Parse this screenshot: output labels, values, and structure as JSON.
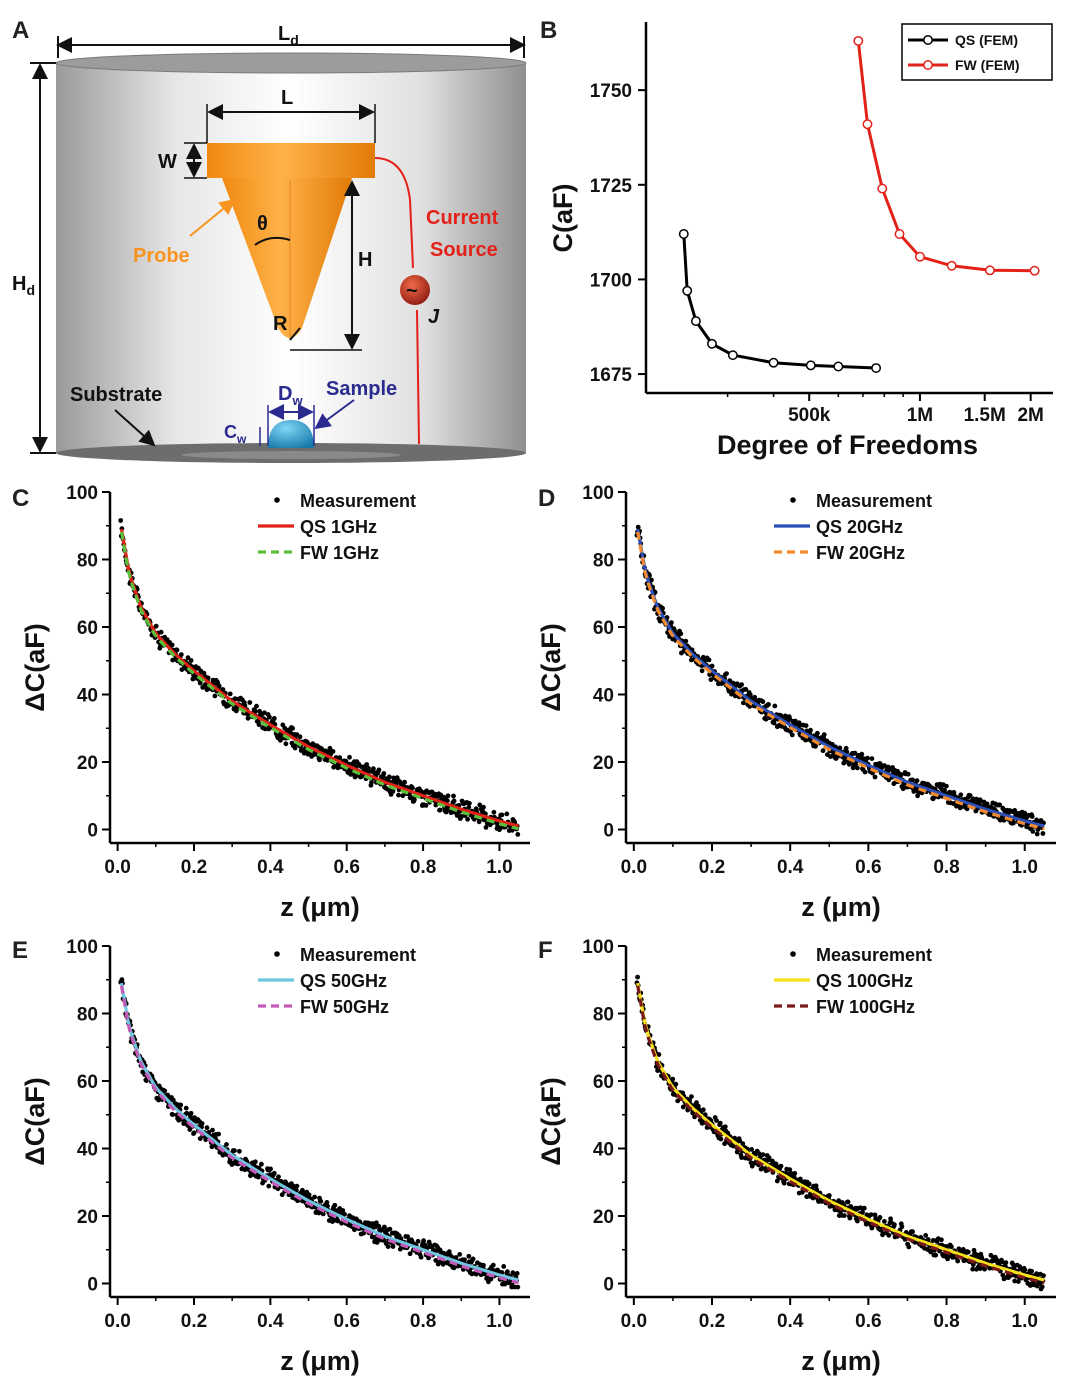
{
  "panel_labels": [
    "A",
    "B",
    "C",
    "D",
    "E",
    "F"
  ],
  "diagram": {
    "labels": {
      "Ld": "L",
      "Ld_sub": "d",
      "Hd": "H",
      "Hd_sub": "d",
      "L": "L",
      "W": "W",
      "theta": "θ",
      "H": "H",
      "R": "R",
      "probe": "Probe",
      "current_source_1": "Current",
      "current_source_2": "Source",
      "J": "J",
      "substrate": "Substrate",
      "sample": "Sample",
      "Dw": "D",
      "Dw_sub": "w",
      "Cw": "C",
      "Cw_sub": "w"
    },
    "colors": {
      "probe": "#f7931e",
      "current": "#e32119",
      "sample": "#1fa3d8",
      "dim": "#2b2b8f"
    }
  },
  "chart_data": [
    {
      "id": "B",
      "type": "line",
      "xlabel": "Degree of Freedoms",
      "ylabel": "C(aF)",
      "x_scale": "log",
      "xlim": [
        180000,
        2300000
      ],
      "ylim": [
        1670,
        1768
      ],
      "x_ticks": [
        {
          "value": 500000,
          "label": "500k"
        },
        {
          "value": 1000000,
          "label": "1M"
        },
        {
          "value": 1500000,
          "label": "1.5M"
        },
        {
          "value": 2000000,
          "label": "2M"
        }
      ],
      "y_ticks": [
        1675,
        1700,
        1725,
        1750
      ],
      "legend": "top-right",
      "series": [
        {
          "name": "QS (FEM)",
          "color": "#000000",
          "x": [
            228000,
            233000,
            246000,
            272000,
            310000,
            400000,
            505000,
            600000,
            760000
          ],
          "y": [
            1712,
            1697,
            1689,
            1683,
            1680,
            1678,
            1677.3,
            1677,
            1676.6
          ]
        },
        {
          "name": "FW (FEM)",
          "color": "#e32119",
          "x": [
            680000,
            720000,
            790000,
            880000,
            1000000,
            1220000,
            1550000,
            2050000
          ],
          "y": [
            1763,
            1741,
            1724,
            1712,
            1706,
            1703.6,
            1702.4,
            1702.3
          ]
        }
      ]
    },
    {
      "id": "C",
      "type": "scatter",
      "xlabel": "z (μm)",
      "ylabel": "ΔC(aF)",
      "xlim": [
        -0.02,
        1.08
      ],
      "ylim": [
        -4,
        100
      ],
      "x_ticks": [
        0.0,
        0.2,
        0.4,
        0.6,
        0.8,
        1.0
      ],
      "y_ticks": [
        0,
        20,
        40,
        60,
        80,
        100
      ],
      "legend": "top-right",
      "series": [
        {
          "name": "Measurement",
          "style": "dots",
          "color": "#000000"
        },
        {
          "name": "QS 1GHz",
          "style": "solid",
          "color": "#e32119"
        },
        {
          "name": "FW 1GHz",
          "style": "dash",
          "color": "#5cbf3c"
        }
      ],
      "curve": {
        "z": [
          0.01,
          0.03,
          0.06,
          0.1,
          0.15,
          0.2,
          0.3,
          0.4,
          0.5,
          0.6,
          0.7,
          0.8,
          0.9,
          1.0,
          1.05
        ],
        "dc": [
          89,
          76,
          66,
          58,
          52,
          47,
          38,
          31,
          24.5,
          19,
          14,
          10,
          6,
          2.5,
          1
        ]
      }
    },
    {
      "id": "D",
      "type": "scatter",
      "xlabel": "z (μm)",
      "ylabel": "ΔC(aF)",
      "xlim": [
        -0.02,
        1.08
      ],
      "ylim": [
        -4,
        100
      ],
      "x_ticks": [
        0.0,
        0.2,
        0.4,
        0.6,
        0.8,
        1.0
      ],
      "y_ticks": [
        0,
        20,
        40,
        60,
        80,
        100
      ],
      "legend": "top-right",
      "series": [
        {
          "name": "Measurement",
          "style": "dots",
          "color": "#000000"
        },
        {
          "name": "QS 20GHz",
          "style": "solid",
          "color": "#2a4fb8"
        },
        {
          "name": "FW 20GHz",
          "style": "dash",
          "color": "#f28a2e"
        }
      ],
      "curve": {
        "z": [
          0.01,
          0.03,
          0.06,
          0.1,
          0.15,
          0.2,
          0.3,
          0.4,
          0.5,
          0.6,
          0.7,
          0.8,
          0.9,
          1.0,
          1.05
        ],
        "dc": [
          89,
          76,
          66,
          58,
          52,
          47,
          38,
          31,
          24.5,
          19,
          14,
          10,
          6,
          2.5,
          1
        ]
      }
    },
    {
      "id": "E",
      "type": "scatter",
      "xlabel": "z (μm)",
      "ylabel": "ΔC(aF)",
      "xlim": [
        -0.02,
        1.08
      ],
      "ylim": [
        -4,
        100
      ],
      "x_ticks": [
        0.0,
        0.2,
        0.4,
        0.6,
        0.8,
        1.0
      ],
      "y_ticks": [
        0,
        20,
        40,
        60,
        80,
        100
      ],
      "legend": "top-right",
      "series": [
        {
          "name": "Measurement",
          "style": "dots",
          "color": "#000000"
        },
        {
          "name": "QS 50GHz",
          "style": "solid",
          "color": "#6ec6e0"
        },
        {
          "name": "FW 50GHz",
          "style": "dash",
          "color": "#c45bb8"
        }
      ],
      "curve": {
        "z": [
          0.01,
          0.03,
          0.06,
          0.1,
          0.15,
          0.2,
          0.3,
          0.4,
          0.5,
          0.6,
          0.7,
          0.8,
          0.9,
          1.0,
          1.05
        ],
        "dc": [
          89,
          76,
          66,
          58,
          52,
          47,
          38,
          31,
          24.5,
          19,
          14,
          10,
          6,
          2.5,
          1
        ]
      }
    },
    {
      "id": "F",
      "type": "scatter",
      "xlabel": "z (μm)",
      "ylabel": "ΔC(aF)",
      "xlim": [
        -0.02,
        1.08
      ],
      "ylim": [
        -4,
        100
      ],
      "x_ticks": [
        0.0,
        0.2,
        0.4,
        0.6,
        0.8,
        1.0
      ],
      "y_ticks": [
        0,
        20,
        40,
        60,
        80,
        100
      ],
      "legend": "top-right",
      "series": [
        {
          "name": "Measurement",
          "style": "dots",
          "color": "#000000"
        },
        {
          "name": "QS 100GHz",
          "style": "solid",
          "color": "#f5e11c"
        },
        {
          "name": "FW 100GHz",
          "style": "dash",
          "color": "#7a1a1a"
        }
      ],
      "curve": {
        "z": [
          0.01,
          0.03,
          0.06,
          0.1,
          0.15,
          0.2,
          0.3,
          0.4,
          0.5,
          0.6,
          0.7,
          0.8,
          0.9,
          1.0,
          1.05
        ],
        "dc": [
          89,
          76,
          66,
          58,
          52,
          47,
          38,
          31,
          24.5,
          19,
          14,
          10,
          6,
          2.5,
          1
        ]
      }
    }
  ],
  "legend_text": {
    "measurement": "Measurement"
  }
}
